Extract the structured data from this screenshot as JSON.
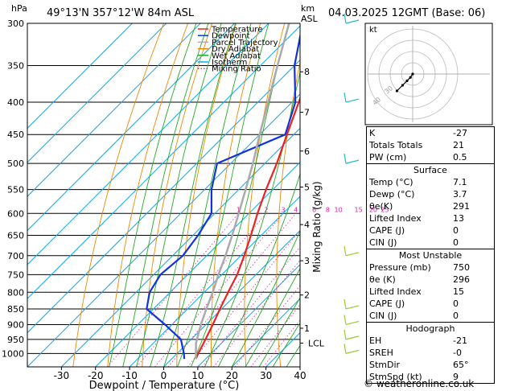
{
  "header": {
    "location": "49°13'N  357°12'W  84m  ASL",
    "datetime": "04.03.2025  12GMT  (Base: 06)",
    "hpa_label": "hPa",
    "km_label": "km",
    "asl_label": "ASL"
  },
  "chart_data": {
    "type": "skew-t log-p sounding",
    "xlabel": "Dewpoint / Temperature (°C)",
    "ylabel_right": "Mixing Ratio (g/kg)",
    "pressure_levels": [
      300,
      350,
      400,
      450,
      500,
      550,
      600,
      650,
      700,
      750,
      800,
      850,
      900,
      950,
      1000
    ],
    "temp_ticks": [
      -30,
      -20,
      -10,
      0,
      10,
      20,
      30,
      40
    ],
    "xlim": [
      -40,
      40
    ],
    "ylim": [
      1050,
      300
    ],
    "y_scale": "log",
    "km_ticks": [
      {
        "label": "8",
        "p": 358
      },
      {
        "label": "7",
        "p": 415
      },
      {
        "label": "6",
        "p": 478
      },
      {
        "label": "5",
        "p": 545
      },
      {
        "label": "4",
        "p": 625
      },
      {
        "label": "3",
        "p": 713
      },
      {
        "label": "2",
        "p": 808
      },
      {
        "label": "1",
        "p": 912
      },
      {
        "label": "LCL",
        "p": 963
      }
    ],
    "mixing_ratio_labels": [
      "1",
      "2",
      "3",
      "4",
      "6",
      "8",
      "10",
      "15",
      "20",
      "25"
    ],
    "mixing_ratio_values": [
      1,
      2,
      3,
      4,
      6,
      8,
      10,
      15,
      20,
      25
    ],
    "legend": [
      {
        "name": "Temperature",
        "color": "#ee2222"
      },
      {
        "name": "Dewpoint",
        "color": "#1133dd"
      },
      {
        "name": "Parcel Trajectory",
        "color": "#aaaaaa"
      },
      {
        "name": "Dry Adiabat",
        "color": "#ee8800"
      },
      {
        "name": "Wet Adiabat",
        "color": "#22aa22"
      },
      {
        "name": "Isotherm",
        "color": "#11aaee"
      },
      {
        "name": "Mixing Ratio",
        "color": "#dd22aa"
      }
    ],
    "series": [
      {
        "name": "Temperature",
        "color": "#ee2222",
        "points": [
          {
            "p": 1020,
            "t": 7.1
          },
          {
            "p": 1000,
            "t": 6.2
          },
          {
            "p": 950,
            "t": 4.2
          },
          {
            "p": 900,
            "t": 2.0
          },
          {
            "p": 850,
            "t": -0.5
          },
          {
            "p": 800,
            "t": -3.0
          },
          {
            "p": 750,
            "t": -5.5
          },
          {
            "p": 700,
            "t": -9.0
          },
          {
            "p": 650,
            "t": -13.0
          },
          {
            "p": 600,
            "t": -17.5
          },
          {
            "p": 550,
            "t": -22.0
          },
          {
            "p": 500,
            "t": -26.5
          },
          {
            "p": 450,
            "t": -32.0
          },
          {
            "p": 400,
            "t": -38.0
          },
          {
            "p": 350,
            "t": -45.0
          },
          {
            "p": 300,
            "t": -52.0
          }
        ]
      },
      {
        "name": "Dewpoint",
        "color": "#1133dd",
        "points": [
          {
            "p": 1020,
            "t": 3.7
          },
          {
            "p": 1000,
            "t": 2.0
          },
          {
            "p": 950,
            "t": -3.0
          },
          {
            "p": 900,
            "t": -12.0
          },
          {
            "p": 850,
            "t": -22.0
          },
          {
            "p": 800,
            "t": -26.0
          },
          {
            "p": 750,
            "t": -28.0
          },
          {
            "p": 700,
            "t": -27.0
          },
          {
            "p": 650,
            "t": -28.5
          },
          {
            "p": 600,
            "t": -31.0
          },
          {
            "p": 550,
            "t": -38.0
          },
          {
            "p": 500,
            "t": -44.0
          },
          {
            "p": 450,
            "t": -32.5
          },
          {
            "p": 400,
            "t": -39.0
          },
          {
            "p": 350,
            "t": -50.0
          },
          {
            "p": 300,
            "t": -60.0
          }
        ]
      },
      {
        "name": "Parcel Trajectory",
        "color": "#aaaaaa",
        "points": [
          {
            "p": 1020,
            "t": 7.1
          },
          {
            "p": 963,
            "t": 2.5
          },
          {
            "p": 900,
            "t": -1.5
          },
          {
            "p": 850,
            "t": -4.5
          },
          {
            "p": 800,
            "t": -7.5
          },
          {
            "p": 750,
            "t": -11.0
          },
          {
            "p": 700,
            "t": -14.5
          },
          {
            "p": 650,
            "t": -18.5
          },
          {
            "p": 600,
            "t": -23.0
          },
          {
            "p": 550,
            "t": -28.0
          },
          {
            "p": 500,
            "t": -33.5
          },
          {
            "p": 450,
            "t": -40.0
          },
          {
            "p": 400,
            "t": -47.0
          },
          {
            "p": 350,
            "t": -55.0
          },
          {
            "p": 300,
            "t": -64.0
          }
        ]
      }
    ]
  },
  "indices": {
    "rows": [
      {
        "label": "K",
        "value": "-27"
      },
      {
        "label": "Totals Totals",
        "value": "21"
      },
      {
        "label": "PW (cm)",
        "value": "0.5"
      }
    ]
  },
  "surface": {
    "title": "Surface",
    "rows": [
      {
        "label": "Temp (°C)",
        "value": "7.1"
      },
      {
        "label": "Dewp (°C)",
        "value": "3.7"
      },
      {
        "label": "θe(K)",
        "value": "291"
      },
      {
        "label": "Lifted Index",
        "value": "13"
      },
      {
        "label": "CAPE (J)",
        "value": "0"
      },
      {
        "label": "CIN (J)",
        "value": "0"
      }
    ]
  },
  "most_unstable": {
    "title": "Most Unstable",
    "rows": [
      {
        "label": "Pressure (mb)",
        "value": "750"
      },
      {
        "label": "θe (K)",
        "value": "296"
      },
      {
        "label": "Lifted Index",
        "value": "15"
      },
      {
        "label": "CAPE (J)",
        "value": "0"
      },
      {
        "label": "CIN (J)",
        "value": "0"
      }
    ]
  },
  "hodograph_table": {
    "title": "Hodograph",
    "rows": [
      {
        "label": "EH",
        "value": "-21"
      },
      {
        "label": "SREH",
        "value": "-0"
      },
      {
        "label": "StmDir",
        "value": "65°"
      },
      {
        "label": "StmSpd (kt)",
        "value": "9"
      }
    ]
  },
  "hodograph": {
    "unit_label": "kt",
    "ring_labels": [
      "40",
      "30"
    ],
    "trace_kt": [
      [
        0,
        0
      ],
      [
        -2,
        -3
      ],
      [
        -5,
        -6
      ],
      [
        -9,
        -10
      ],
      [
        -14,
        -15
      ]
    ]
  },
  "footer": {
    "credit": "© weatheronline.co.uk"
  }
}
